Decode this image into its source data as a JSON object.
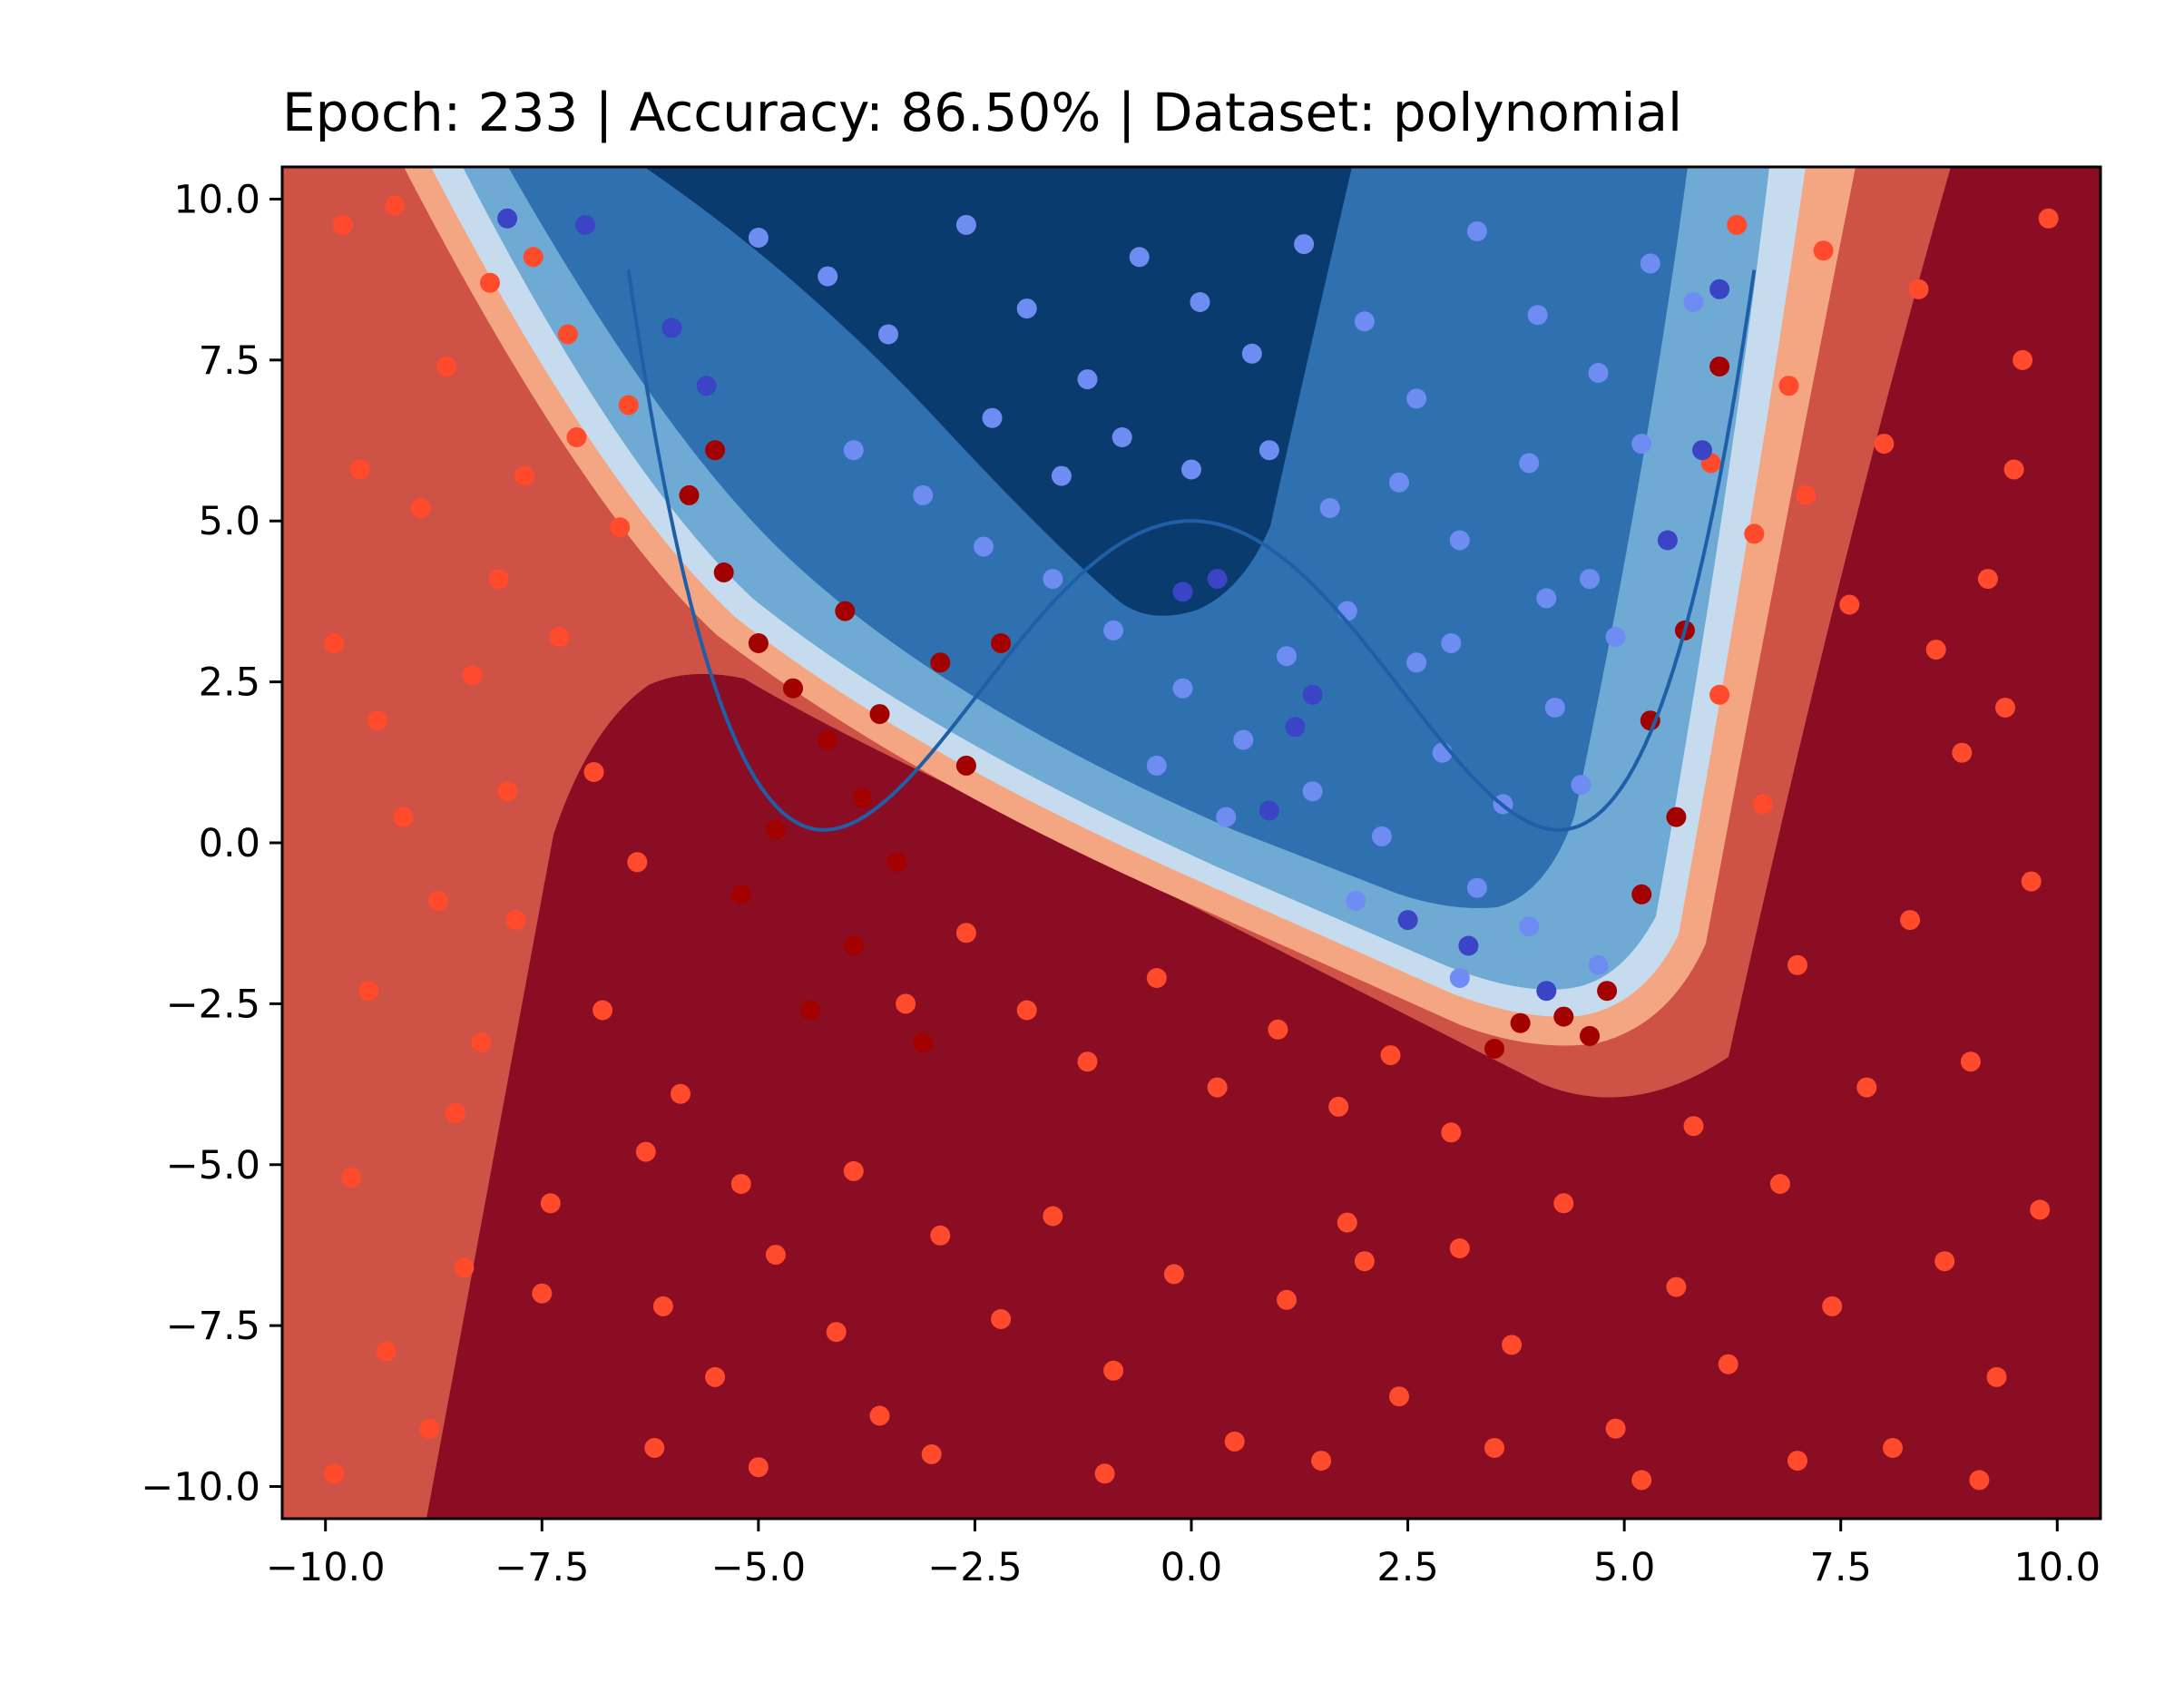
{
  "chart_data": {
    "type": "scatter",
    "title": "Epoch: 233 | Accuracy: 86.50% | Dataset: polynomial",
    "xlabel": "",
    "ylabel": "",
    "xlim": [
      -10.5,
      10.5
    ],
    "ylim": [
      -10.5,
      10.5
    ],
    "grid": false,
    "legend": "none",
    "x_ticks": [
      -10.0,
      -7.5,
      -5.0,
      -2.5,
      0.0,
      2.5,
      5.0,
      7.5,
      10.0
    ],
    "x_tick_labels": [
      "−10.0",
      "−7.5",
      "−5.0",
      "−2.5",
      "0.0",
      "2.5",
      "5.0",
      "7.5",
      "10.0"
    ],
    "y_ticks": [
      -10.0,
      -7.5,
      -5.0,
      -2.5,
      0.0,
      2.5,
      5.0,
      7.5,
      10.0
    ],
    "y_tick_labels": [
      "−10.0",
      "−7.5",
      "−5.0",
      "−2.5",
      "0.0",
      "2.5",
      "5.0",
      "7.5",
      "10.0"
    ],
    "true_boundary": {
      "type": "line",
      "expression": "y = 0.0148*x^4 - 0.533*x^2 + 5",
      "color": "#1f5fa8"
    },
    "decision_regions": {
      "type": "filled_contour",
      "colormap": "RdBu",
      "levels": [
        {
          "name": "strong-class-0",
          "color": "#8b0d24"
        },
        {
          "name": "class-0",
          "color": "#cf5246"
        },
        {
          "name": "weak-class-0",
          "color": "#f4a582"
        },
        {
          "name": "weak-class-1",
          "color": "#c6dcee"
        },
        {
          "name": "class-1",
          "color": "#6faad4"
        },
        {
          "name": "moderate-class-1",
          "color": "#2f71b0"
        },
        {
          "name": "strong-class-1",
          "color": "#0a3b6e"
        }
      ]
    },
    "scatter_series": [
      {
        "class": "class-0-correct",
        "color": "#ff4a2c"
      },
      {
        "class": "class-0-misclassified",
        "color": "#a30000"
      },
      {
        "class": "class-1-correct",
        "color": "#6f8cf2"
      },
      {
        "class": "class-1-misclassified",
        "color": "#3a44c4"
      }
    ],
    "sample_points": {
      "class_0_correct": [
        [
          -9.8,
          9.6
        ],
        [
          -9.2,
          9.9
        ],
        [
          -8.6,
          7.4
        ],
        [
          -8.1,
          8.7
        ],
        [
          -9.6,
          5.8
        ],
        [
          -8.9,
          5.2
        ],
        [
          -9.9,
          3.1
        ],
        [
          -8.3,
          2.6
        ],
        [
          -9.1,
          0.4
        ],
        [
          -8.7,
          -0.9
        ],
        [
          -9.5,
          -2.3
        ],
        [
          -8.2,
          -3.1
        ],
        [
          -9.7,
          -5.2
        ],
        [
          -8.4,
          -6.6
        ],
        [
          -9.3,
          -7.9
        ],
        [
          -8.8,
          -9.1
        ],
        [
          -9.9,
          -9.8
        ],
        [
          -7.6,
          9.1
        ],
        [
          -7.1,
          6.3
        ],
        [
          -6.6,
          4.9
        ],
        [
          -7.3,
          3.2
        ],
        [
          -6.9,
          1.1
        ],
        [
          -7.8,
          -1.2
        ],
        [
          -6.4,
          -0.3
        ],
        [
          -7.7,
          5.7
        ],
        [
          -8.0,
          4.1
        ],
        [
          -7.2,
          7.9
        ],
        [
          -6.5,
          6.8
        ],
        [
          -7.9,
          0.8
        ],
        [
          -9.4,
          1.9
        ],
        [
          -6.8,
          -2.6
        ],
        [
          -5.9,
          -3.9
        ],
        [
          -6.3,
          -4.8
        ],
        [
          -7.4,
          -5.6
        ],
        [
          -5.2,
          -5.3
        ],
        [
          -4.8,
          -6.4
        ],
        [
          -6.1,
          -7.2
        ],
        [
          -5.5,
          -8.3
        ],
        [
          -4.1,
          -7.6
        ],
        [
          -3.6,
          -8.9
        ],
        [
          -2.9,
          -6.1
        ],
        [
          -2.2,
          -7.4
        ],
        [
          -1.6,
          -5.8
        ],
        [
          -0.9,
          -8.2
        ],
        [
          -0.2,
          -6.7
        ],
        [
          0.5,
          -9.3
        ],
        [
          1.1,
          -7.1
        ],
        [
          1.8,
          -5.9
        ],
        [
          2.4,
          -8.6
        ],
        [
          3.1,
          -6.3
        ],
        [
          3.7,
          -7.8
        ],
        [
          4.3,
          -5.6
        ],
        [
          4.9,
          -9.1
        ],
        [
          5.6,
          -6.9
        ],
        [
          6.2,
          -8.1
        ],
        [
          6.8,
          -5.3
        ],
        [
          7.4,
          -7.2
        ],
        [
          8.1,
          -9.4
        ],
        [
          8.7,
          -6.5
        ],
        [
          9.3,
          -8.3
        ],
        [
          9.8,
          -5.7
        ],
        [
          -1.9,
          -2.6
        ],
        [
          -1.2,
          -3.4
        ],
        [
          -0.4,
          -2.1
        ],
        [
          0.3,
          -3.8
        ],
        [
          1.0,
          -2.9
        ],
        [
          1.7,
          -4.1
        ],
        [
          2.3,
          -3.3
        ],
        [
          3.0,
          -4.5
        ],
        [
          -2.6,
          -1.4
        ],
        [
          -3.3,
          -2.5
        ],
        [
          -3.9,
          -5.1
        ],
        [
          6.1,
          2.3
        ],
        [
          6.5,
          4.8
        ],
        [
          6.9,
          7.1
        ],
        [
          7.3,
          9.2
        ],
        [
          6.6,
          0.6
        ],
        [
          7.0,
          -1.9
        ],
        [
          7.6,
          3.7
        ],
        [
          8.0,
          6.2
        ],
        [
          8.4,
          8.6
        ],
        [
          8.9,
          1.4
        ],
        [
          9.2,
          4.1
        ],
        [
          9.6,
          7.5
        ],
        [
          9.9,
          9.7
        ],
        [
          8.3,
          -1.2
        ],
        [
          9.0,
          -3.4
        ],
        [
          9.7,
          -0.6
        ],
        [
          7.8,
          -3.8
        ],
        [
          5.8,
          -4.4
        ],
        [
          6.0,
          5.9
        ],
        [
          6.3,
          9.6
        ],
        [
          7.1,
          5.4
        ],
        [
          8.6,
          3.0
        ],
        [
          9.4,
          2.1
        ],
        [
          9.5,
          5.8
        ],
        [
          -8.5,
          -4.2
        ],
        [
          -7.5,
          -7.0
        ],
        [
          -6.2,
          -9.4
        ],
        [
          -5.0,
          -9.7
        ],
        [
          -3.0,
          -9.5
        ],
        [
          -1.0,
          -9.8
        ],
        [
          1.5,
          -9.6
        ],
        [
          3.5,
          -9.4
        ],
        [
          5.2,
          -9.9
        ],
        [
          7.0,
          -9.6
        ],
        [
          9.1,
          -9.9
        ],
        [
          2.0,
          -6.5
        ]
      ],
      "class_0_misclassified": [
        [
          -5.8,
          5.4
        ],
        [
          -5.4,
          4.2
        ],
        [
          -5.0,
          3.1
        ],
        [
          -4.6,
          2.4
        ],
        [
          -4.2,
          1.6
        ],
        [
          -3.8,
          0.7
        ],
        [
          -3.4,
          -0.3
        ],
        [
          -3.9,
          -1.6
        ],
        [
          -4.4,
          -2.6
        ],
        [
          -3.1,
          -3.1
        ],
        [
          -5.2,
          -0.8
        ],
        [
          -4.8,
          0.2
        ],
        [
          -2.9,
          2.8
        ],
        [
          -2.2,
          3.1
        ],
        [
          -5.5,
          6.1
        ],
        [
          -3.6,
          2.0
        ],
        [
          -2.6,
          1.2
        ],
        [
          -4.0,
          3.6
        ],
        [
          3.8,
          -2.8
        ],
        [
          4.3,
          -2.7
        ],
        [
          4.6,
          -3.0
        ],
        [
          5.2,
          -0.8
        ],
        [
          5.6,
          0.4
        ],
        [
          5.3,
          1.9
        ],
        [
          5.7,
          3.3
        ],
        [
          6.1,
          7.4
        ],
        [
          4.8,
          -2.3
        ],
        [
          3.5,
          -3.2
        ]
      ],
      "class_1_correct": [
        [
          -5.0,
          9.4
        ],
        [
          -4.2,
          8.8
        ],
        [
          -3.5,
          7.9
        ],
        [
          -2.6,
          9.6
        ],
        [
          -1.9,
          8.3
        ],
        [
          -1.2,
          7.2
        ],
        [
          -0.6,
          9.1
        ],
        [
          0.1,
          8.4
        ],
        [
          0.7,
          7.6
        ],
        [
          1.3,
          9.3
        ],
        [
          2.0,
          8.1
        ],
        [
          2.6,
          6.9
        ],
        [
          3.3,
          9.5
        ],
        [
          4.0,
          8.2
        ],
        [
          4.7,
          7.3
        ],
        [
          5.3,
          9.0
        ],
        [
          5.8,
          8.4
        ],
        [
          -3.9,
          6.1
        ],
        [
          -3.1,
          5.4
        ],
        [
          -2.3,
          6.6
        ],
        [
          -1.5,
          5.7
        ],
        [
          -0.8,
          6.3
        ],
        [
          0.0,
          5.8
        ],
        [
          0.9,
          6.1
        ],
        [
          1.6,
          5.2
        ],
        [
          2.4,
          5.6
        ],
        [
          3.1,
          4.7
        ],
        [
          3.9,
          5.9
        ],
        [
          4.6,
          4.1
        ],
        [
          5.2,
          6.2
        ],
        [
          -1.6,
          4.1
        ],
        [
          -0.9,
          3.3
        ],
        [
          -0.1,
          2.4
        ],
        [
          0.6,
          1.6
        ],
        [
          1.4,
          0.8
        ],
        [
          2.2,
          0.1
        ],
        [
          2.9,
          1.4
        ],
        [
          3.6,
          0.6
        ],
        [
          4.2,
          2.1
        ],
        [
          4.9,
          3.2
        ],
        [
          4.5,
          0.9
        ],
        [
          3.3,
          -0.7
        ],
        [
          2.6,
          2.8
        ],
        [
          1.8,
          3.6
        ],
        [
          1.1,
          2.9
        ],
        [
          4.1,
          3.8
        ],
        [
          3.0,
          3.1
        ],
        [
          -2.4,
          4.6
        ],
        [
          0.4,
          0.4
        ],
        [
          1.9,
          -0.9
        ],
        [
          3.9,
          -1.3
        ],
        [
          4.7,
          -1.9
        ],
        [
          3.1,
          -2.1
        ],
        [
          -0.4,
          1.2
        ]
      ],
      "class_1_misclassified": [
        [
          -7.9,
          9.7
        ],
        [
          -7.0,
          9.6
        ],
        [
          -6.0,
          8.0
        ],
        [
          -5.6,
          7.1
        ],
        [
          -0.1,
          3.9
        ],
        [
          0.3,
          4.1
        ],
        [
          1.4,
          2.3
        ],
        [
          1.2,
          1.8
        ],
        [
          0.9,
          0.5
        ],
        [
          3.2,
          -1.6
        ],
        [
          4.1,
          -2.3
        ],
        [
          5.9,
          6.1
        ],
        [
          6.1,
          8.6
        ],
        [
          5.5,
          4.7
        ],
        [
          2.5,
          -1.2
        ]
      ]
    }
  }
}
